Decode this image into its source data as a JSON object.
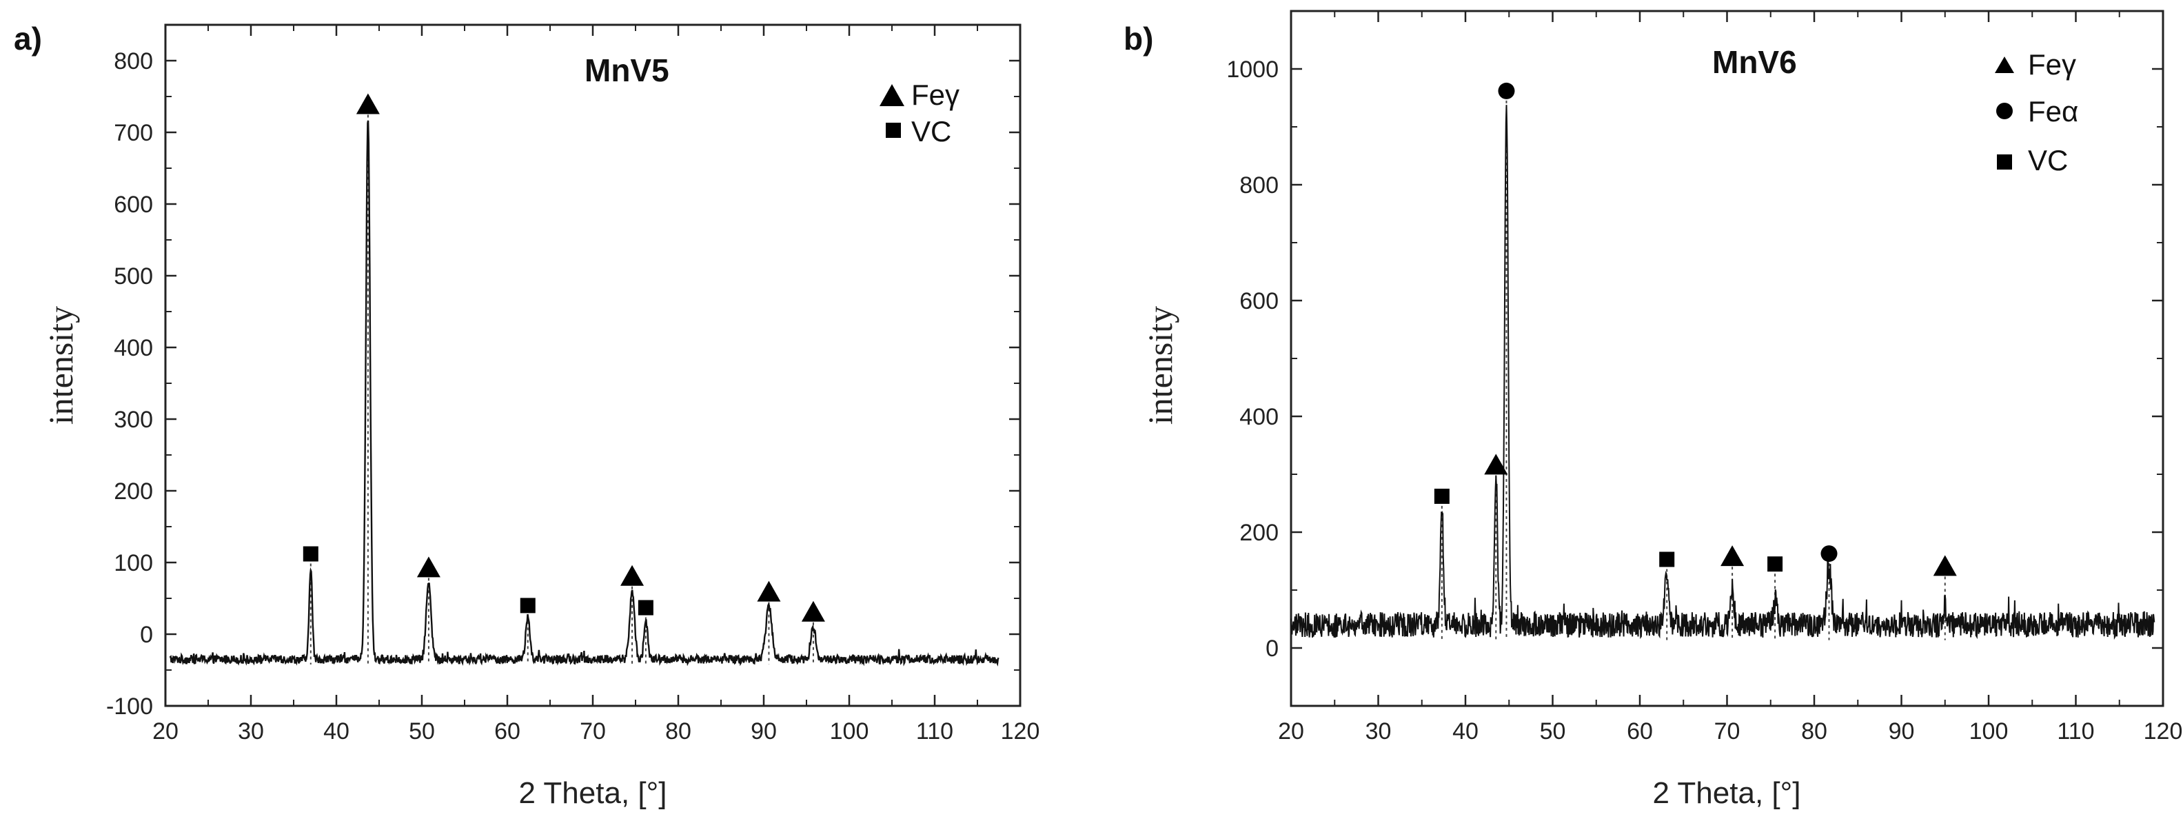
{
  "chart_data": [
    {
      "panel": "a)",
      "type": "line",
      "title": "MnV5",
      "xlabel": "2 Theta, [°]",
      "ylabel": "intensity",
      "xlim": [
        20,
        120
      ],
      "ylim": [
        -100,
        850
      ],
      "xticks": [
        20,
        30,
        40,
        50,
        60,
        70,
        80,
        90,
        100,
        110,
        120
      ],
      "yticks": [
        -100,
        0,
        100,
        200,
        300,
        400,
        500,
        600,
        700,
        800
      ],
      "xtick_labels": [
        "20",
        "30",
        "40",
        "50",
        "60",
        "70",
        "80",
        "90",
        "100",
        "110",
        "120"
      ],
      "ytick_labels": [
        "-100",
        "0",
        "100",
        "200",
        "300",
        "400",
        "500",
        "600",
        "700",
        "800"
      ],
      "pattern": {
        "x_start": 20.5,
        "x_end": 117.5,
        "baseline": -35,
        "noise": 6
      },
      "peaks": [
        {
          "x": 37.0,
          "y": 95,
          "width": 0.25,
          "phase": "VC"
        },
        {
          "x": 43.7,
          "y": 720,
          "width": 0.35,
          "phase": "Feγ"
        },
        {
          "x": 50.8,
          "y": 75,
          "width": 0.4,
          "phase": "Feγ"
        },
        {
          "x": 62.4,
          "y": 22,
          "width": 0.35,
          "phase": "VC"
        },
        {
          "x": 74.6,
          "y": 60,
          "width": 0.4,
          "phase": "Feγ"
        },
        {
          "x": 76.2,
          "y": 20,
          "width": 0.3,
          "phase": "VC"
        },
        {
          "x": 90.6,
          "y": 40,
          "width": 0.5,
          "phase": "Feγ"
        },
        {
          "x": 95.8,
          "y": 10,
          "width": 0.4,
          "phase": "Feγ"
        }
      ],
      "markers": [
        {
          "x": 37.0,
          "y": 112,
          "phase": "VC"
        },
        {
          "x": 43.7,
          "y": 738,
          "phase": "Feγ"
        },
        {
          "x": 50.8,
          "y": 92,
          "phase": "Feγ"
        },
        {
          "x": 62.4,
          "y": 40,
          "phase": "VC"
        },
        {
          "x": 74.6,
          "y": 80,
          "phase": "Feγ"
        },
        {
          "x": 76.2,
          "y": 37,
          "phase": "VC"
        },
        {
          "x": 90.6,
          "y": 58,
          "phase": "Feγ"
        },
        {
          "x": 95.8,
          "y": 30,
          "phase": "Feγ"
        }
      ],
      "legend": [
        {
          "label": "Feγ",
          "phase": "Feγ"
        },
        {
          "label": "VC",
          "phase": "VC"
        }
      ],
      "legend_position": "top-right"
    },
    {
      "panel": "b)",
      "type": "line",
      "title": "MnV6",
      "xlabel": "2 Theta, [°]",
      "ylabel": "intensity",
      "xlim": [
        20,
        120
      ],
      "ylim": [
        -100,
        1100
      ],
      "xticks": [
        20,
        30,
        40,
        50,
        60,
        70,
        80,
        90,
        100,
        110,
        120
      ],
      "yticks": [
        0,
        200,
        400,
        600,
        800,
        1000
      ],
      "xtick_labels": [
        "20",
        "30",
        "40",
        "50",
        "60",
        "70",
        "80",
        "90",
        "100",
        "110",
        "120"
      ],
      "ytick_labels": [
        "0",
        "200",
        "400",
        "600",
        "800",
        "1000"
      ],
      "pattern": {
        "x_start": 20.0,
        "x_end": 119.0,
        "baseline": 40,
        "noise": 22
      },
      "peaks": [
        {
          "x": 37.3,
          "y": 240,
          "width": 0.25,
          "phase": "VC"
        },
        {
          "x": 43.5,
          "y": 300,
          "width": 0.25,
          "phase": "Feγ"
        },
        {
          "x": 44.7,
          "y": 950,
          "width": 0.28,
          "phase": "Feα"
        },
        {
          "x": 63.1,
          "y": 125,
          "width": 0.35,
          "phase": "VC"
        },
        {
          "x": 70.6,
          "y": 100,
          "width": 0.3,
          "phase": "Feγ"
        },
        {
          "x": 75.5,
          "y": 80,
          "width": 0.3,
          "phase": "VC"
        },
        {
          "x": 81.7,
          "y": 140,
          "width": 0.35,
          "phase": "Feα"
        },
        {
          "x": 95.0,
          "y": 70,
          "width": 0.3,
          "phase": "Feγ"
        }
      ],
      "markers": [
        {
          "x": 37.3,
          "y": 262,
          "phase": "VC"
        },
        {
          "x": 43.5,
          "y": 315,
          "phase": "Feγ"
        },
        {
          "x": 44.7,
          "y": 962,
          "phase": "Feα"
        },
        {
          "x": 63.1,
          "y": 153,
          "phase": "VC"
        },
        {
          "x": 70.6,
          "y": 157,
          "phase": "Feγ"
        },
        {
          "x": 75.5,
          "y": 145,
          "phase": "VC"
        },
        {
          "x": 81.7,
          "y": 163,
          "phase": "Feα"
        },
        {
          "x": 95.0,
          "y": 140,
          "phase": "Feγ"
        }
      ],
      "legend": [
        {
          "label": "Feγ",
          "phase": "Feγ"
        },
        {
          "label": "Feα",
          "phase": "Feα"
        },
        {
          "label": "VC",
          "phase": "VC"
        }
      ],
      "legend_position": "top-right"
    }
  ],
  "phase_symbols": {
    "Feγ": "triangle",
    "Feα": "circle",
    "VC": "square"
  },
  "colors": {
    "line": "#111111",
    "marker": "#000000",
    "axis": "#222222",
    "background": "#ffffff"
  }
}
